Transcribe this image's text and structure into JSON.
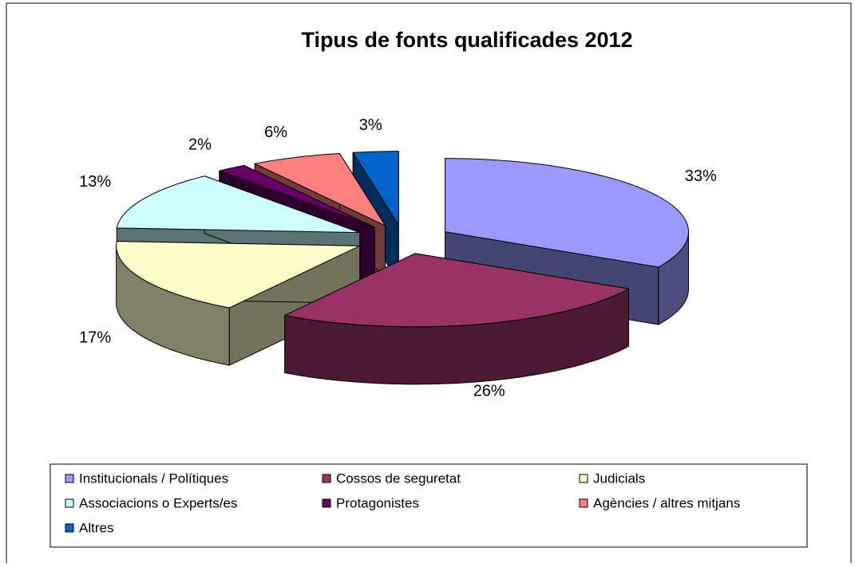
{
  "chart_data": {
    "type": "pie3d",
    "title": "Tipus de fonts qualificades 2012",
    "categories": [
      "Institucionals / Polítiques",
      "Cossos de seguretat",
      "Judicials",
      "Associacions o Experts/es",
      "Protagonistes",
      "Agències / altres mitjans",
      "Altres"
    ],
    "values": [
      33,
      26,
      17,
      13,
      2,
      6,
      3
    ],
    "value_labels": [
      "33%",
      "26%",
      "17%",
      "13%",
      "2%",
      "6%",
      "3%"
    ],
    "colors": [
      "#9999ff",
      "#993366",
      "#ffffcc",
      "#ccffff",
      "#660066",
      "#ff8080",
      "#0066cc"
    ],
    "legend": "bottom"
  }
}
